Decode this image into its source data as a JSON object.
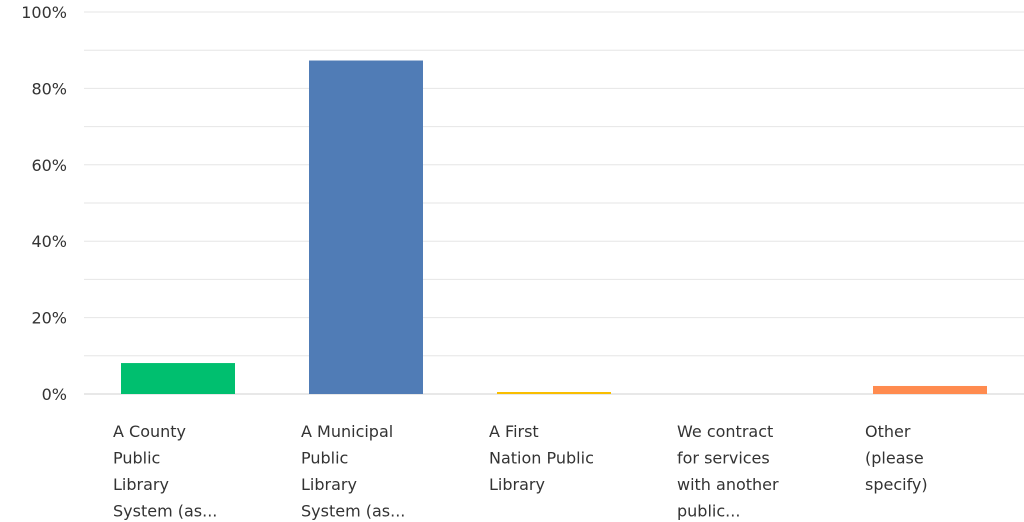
{
  "chart_data": {
    "type": "bar",
    "categories": [
      [
        "A County",
        "Public",
        "Library",
        "System (as..."
      ],
      [
        "A Municipal",
        "Public",
        "Library",
        "System (as..."
      ],
      [
        "A First",
        "Nation Public",
        "Library"
      ],
      [
        "We contract",
        "for services",
        "with another",
        "public..."
      ],
      [
        "Other",
        "(please",
        "specify)"
      ]
    ],
    "values": [
      8.1,
      87.3,
      0.5,
      0,
      2.1
    ],
    "value_unit": "%",
    "ylim": [
      0,
      100
    ],
    "yticks": [
      "0%",
      "20%",
      "40%",
      "60%",
      "80%",
      "100%"
    ],
    "grid": true,
    "colors": [
      "#00bf6f",
      "#507cb6",
      "#f9be00",
      "#6bc8cd",
      "#ff8b4f"
    ],
    "title": "",
    "xlabel": "",
    "ylabel": ""
  }
}
